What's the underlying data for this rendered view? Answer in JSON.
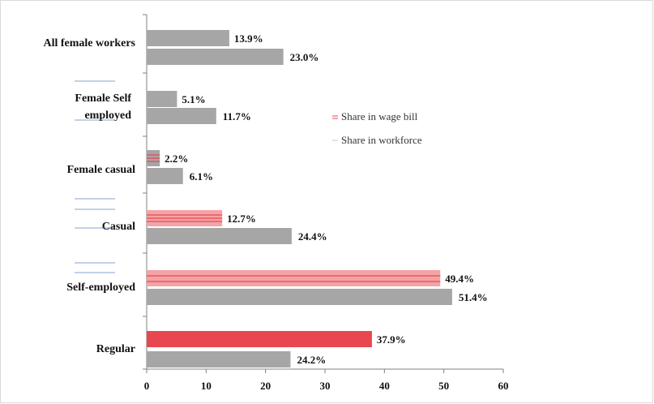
{
  "chart_data": {
    "type": "bar",
    "orientation": "horizontal",
    "categories": [
      "All female workers",
      "Female Self employed",
      "Female casual",
      "Casual",
      "Self-employed",
      "Regular"
    ],
    "series": [
      {
        "name": "Share in wage bill",
        "values": [
          13.9,
          5.1,
          2.2,
          12.7,
          49.4,
          37.9
        ],
        "labels": [
          "13.9%",
          "5.1%",
          "2.2%",
          "12.7%",
          "49.4%",
          "37.9%"
        ]
      },
      {
        "name": "Share in workforce",
        "values": [
          23.0,
          11.7,
          6.1,
          24.4,
          51.4,
          24.2
        ],
        "labels": [
          "23.0%",
          "11.7%",
          "6.1%",
          "24.4%",
          "51.4%",
          "24.2%"
        ]
      }
    ],
    "xlim": [
      0,
      60
    ],
    "xticks": [
      "0",
      "10",
      "20",
      "30",
      "40",
      "50",
      "60"
    ],
    "grid": false,
    "legend_position": "right",
    "colors": {
      "wage_bill_gray": "#a6a6a6",
      "wage_bill_red": "#e8474f",
      "wage_bill_red_light": "#f4a3a6",
      "workforce_gray": "#a6a6a6",
      "legend_line": "#c9c9c9"
    }
  }
}
